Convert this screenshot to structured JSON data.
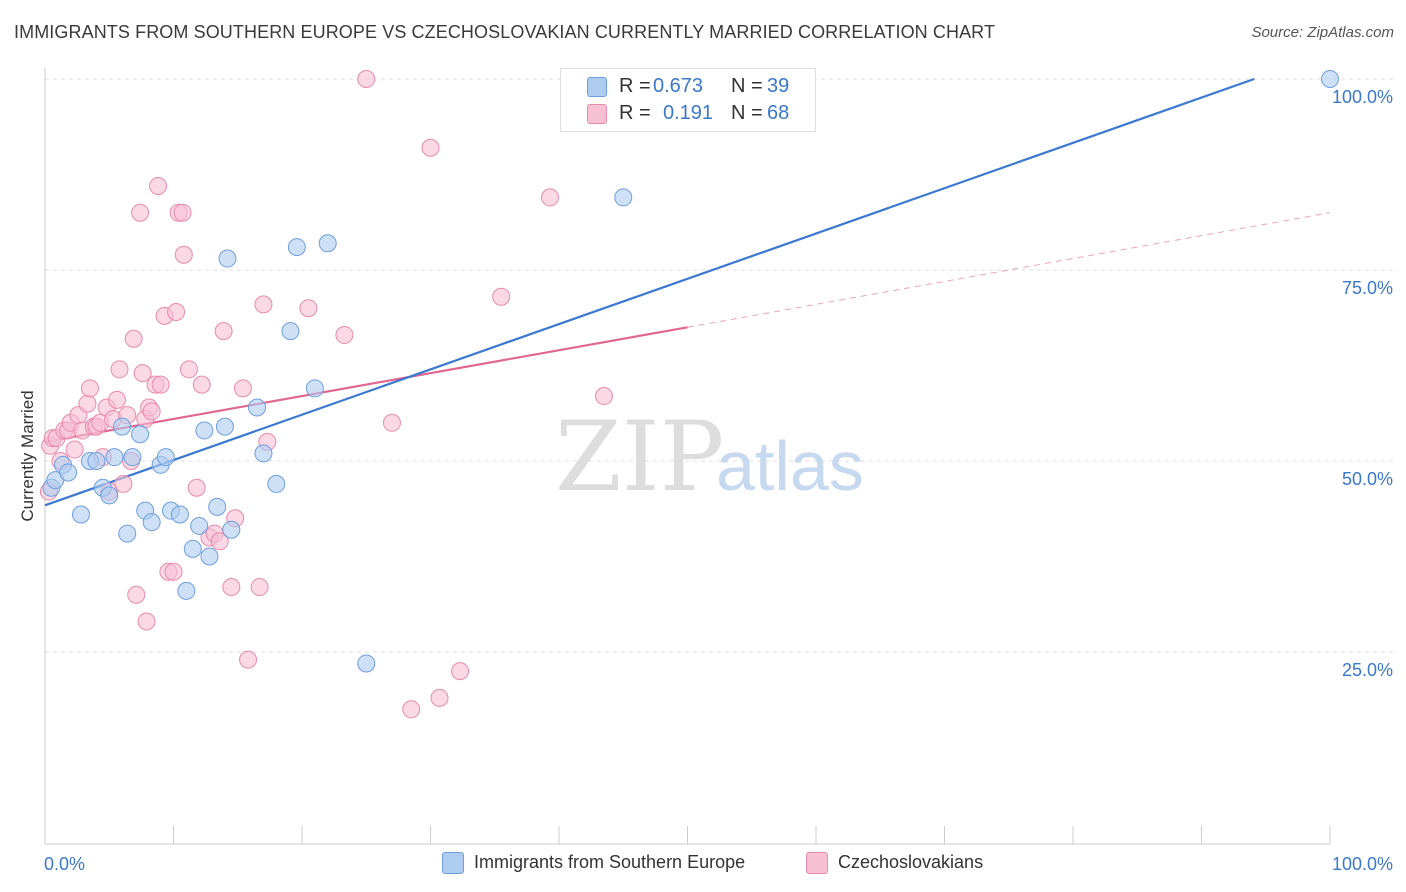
{
  "title": "IMMIGRANTS FROM SOUTHERN EUROPE VS CZECHOSLOVAKIAN CURRENTLY MARRIED CORRELATION CHART",
  "source": "Source: ZipAtlas.com",
  "watermark": {
    "zip": "ZIP",
    "atlas": "atlas"
  },
  "legend": {
    "r_label": "R =",
    "n_label": "N =",
    "blue": {
      "r": "0.673",
      "n": "39"
    },
    "pink": {
      "r": "0.191",
      "n": "68"
    }
  },
  "colors": {
    "blue_fill": "#aecbf0",
    "blue_stroke": "#6f9fdc",
    "blue_line": "#3b78cf",
    "pink_fill": "#f7c0d3",
    "pink_stroke": "#e88aab",
    "pink_line": "#e0678f",
    "axis_text": "#3a78c9"
  },
  "chart_data": {
    "type": "scatter",
    "title": "IMMIGRANTS FROM SOUTHERN EUROPE VS CZECHOSLOVAKIAN CURRENTLY MARRIED CORRELATION CHART",
    "xlabel": "",
    "ylabel": "Currently Married",
    "xlim": [
      0,
      100
    ],
    "ylim": [
      0,
      100
    ],
    "x_tick_labels": [
      "0.0%",
      "100.0%"
    ],
    "y_ticks": [
      25,
      50,
      75,
      100
    ],
    "y_tick_labels": [
      "25.0%",
      "50.0%",
      "75.0%",
      "100.0%"
    ],
    "grid": true,
    "legend_position": "top-center",
    "series": [
      {
        "name": "Immigrants from Southern Europe",
        "color": "#aecbf0",
        "trend": {
          "x": [
            0,
            94.1
          ],
          "y": [
            44.2,
            100
          ]
        },
        "points": [
          {
            "x": 0.5,
            "y": 46.5
          },
          {
            "x": 0.8,
            "y": 47.5
          },
          {
            "x": 1.4,
            "y": 49.5
          },
          {
            "x": 1.8,
            "y": 48.5
          },
          {
            "x": 2.8,
            "y": 43
          },
          {
            "x": 3.5,
            "y": 50
          },
          {
            "x": 4.0,
            "y": 50
          },
          {
            "x": 4.5,
            "y": 46.5
          },
          {
            "x": 5.0,
            "y": 45.5
          },
          {
            "x": 5.4,
            "y": 50.5
          },
          {
            "x": 6.0,
            "y": 54.5
          },
          {
            "x": 6.4,
            "y": 40.5
          },
          {
            "x": 6.8,
            "y": 50.5
          },
          {
            "x": 7.4,
            "y": 53.5
          },
          {
            "x": 7.8,
            "y": 43.5
          },
          {
            "x": 8.3,
            "y": 42
          },
          {
            "x": 9.0,
            "y": 49.5
          },
          {
            "x": 9.4,
            "y": 50.5
          },
          {
            "x": 9.8,
            "y": 43.5
          },
          {
            "x": 10.5,
            "y": 43
          },
          {
            "x": 11.0,
            "y": 33
          },
          {
            "x": 11.5,
            "y": 38.5
          },
          {
            "x": 12.0,
            "y": 41.5
          },
          {
            "x": 12.4,
            "y": 54
          },
          {
            "x": 12.8,
            "y": 37.5
          },
          {
            "x": 13.4,
            "y": 44
          },
          {
            "x": 14.0,
            "y": 54.5
          },
          {
            "x": 14.2,
            "y": 76.5
          },
          {
            "x": 14.5,
            "y": 41
          },
          {
            "x": 16.5,
            "y": 57
          },
          {
            "x": 17.0,
            "y": 51
          },
          {
            "x": 18.0,
            "y": 47
          },
          {
            "x": 19.1,
            "y": 67
          },
          {
            "x": 19.6,
            "y": 78
          },
          {
            "x": 21.0,
            "y": 59.5
          },
          {
            "x": 22.0,
            "y": 78.5
          },
          {
            "x": 25.0,
            "y": 23.5
          },
          {
            "x": 45.0,
            "y": 84.5
          },
          {
            "x": 100.0,
            "y": 100
          }
        ]
      },
      {
        "name": "Czechoslovakians",
        "color": "#f7c0d3",
        "trend": {
          "x": [
            0,
            50.0
          ],
          "y": [
            52.5,
            67.5
          ]
        },
        "trend_ext": {
          "x": [
            50.0,
            100
          ],
          "y": [
            67.5,
            82.5
          ]
        },
        "points": [
          {
            "x": 0.3,
            "y": 46
          },
          {
            "x": 0.4,
            "y": 52
          },
          {
            "x": 0.6,
            "y": 53
          },
          {
            "x": 0.9,
            "y": 53
          },
          {
            "x": 1.2,
            "y": 50
          },
          {
            "x": 1.5,
            "y": 54
          },
          {
            "x": 1.8,
            "y": 54
          },
          {
            "x": 2.0,
            "y": 55
          },
          {
            "x": 2.3,
            "y": 51.5
          },
          {
            "x": 2.6,
            "y": 56
          },
          {
            "x": 2.9,
            "y": 54
          },
          {
            "x": 3.3,
            "y": 57.5
          },
          {
            "x": 3.5,
            "y": 59.5
          },
          {
            "x": 3.8,
            "y": 54.5
          },
          {
            "x": 4.0,
            "y": 54.5
          },
          {
            "x": 4.3,
            "y": 55
          },
          {
            "x": 4.5,
            "y": 50.5
          },
          {
            "x": 4.8,
            "y": 57
          },
          {
            "x": 5.0,
            "y": 46
          },
          {
            "x": 5.3,
            "y": 55.5
          },
          {
            "x": 5.6,
            "y": 58
          },
          {
            "x": 5.8,
            "y": 62
          },
          {
            "x": 6.1,
            "y": 47
          },
          {
            "x": 6.4,
            "y": 56
          },
          {
            "x": 6.7,
            "y": 50
          },
          {
            "x": 6.9,
            "y": 66
          },
          {
            "x": 7.1,
            "y": 32.5
          },
          {
            "x": 7.4,
            "y": 82.5
          },
          {
            "x": 7.6,
            "y": 61.5
          },
          {
            "x": 7.8,
            "y": 55.5
          },
          {
            "x": 7.9,
            "y": 29
          },
          {
            "x": 8.1,
            "y": 57
          },
          {
            "x": 8.3,
            "y": 56.5
          },
          {
            "x": 8.6,
            "y": 60
          },
          {
            "x": 8.8,
            "y": 86
          },
          {
            "x": 9.0,
            "y": 60
          },
          {
            "x": 9.3,
            "y": 69
          },
          {
            "x": 9.6,
            "y": 35.5
          },
          {
            "x": 10.0,
            "y": 35.5
          },
          {
            "x": 10.2,
            "y": 69.5
          },
          {
            "x": 10.4,
            "y": 82.5
          },
          {
            "x": 10.7,
            "y": 82.5
          },
          {
            "x": 10.8,
            "y": 77
          },
          {
            "x": 11.2,
            "y": 62
          },
          {
            "x": 11.8,
            "y": 46.5
          },
          {
            "x": 12.2,
            "y": 60
          },
          {
            "x": 12.8,
            "y": 40
          },
          {
            "x": 13.2,
            "y": 40.5
          },
          {
            "x": 13.6,
            "y": 39.5
          },
          {
            "x": 13.9,
            "y": 67
          },
          {
            "x": 14.5,
            "y": 33.5
          },
          {
            "x": 14.8,
            "y": 42.5
          },
          {
            "x": 15.4,
            "y": 59.5
          },
          {
            "x": 15.8,
            "y": 24
          },
          {
            "x": 16.7,
            "y": 33.5
          },
          {
            "x": 17.0,
            "y": 70.5
          },
          {
            "x": 17.3,
            "y": 52.5
          },
          {
            "x": 20.5,
            "y": 70
          },
          {
            "x": 23.3,
            "y": 66.5
          },
          {
            "x": 25.0,
            "y": 100
          },
          {
            "x": 27.0,
            "y": 55
          },
          {
            "x": 28.5,
            "y": 17.5
          },
          {
            "x": 30.0,
            "y": 91
          },
          {
            "x": 30.7,
            "y": 19
          },
          {
            "x": 32.3,
            "y": 22.5
          },
          {
            "x": 35.5,
            "y": 71.5
          },
          {
            "x": 39.3,
            "y": 84.5
          },
          {
            "x": 43.5,
            "y": 58.5
          }
        ]
      }
    ]
  },
  "bottom_legend": {
    "blue_label": "Immigrants from Southern Europe",
    "pink_label": "Czechoslovakians"
  }
}
